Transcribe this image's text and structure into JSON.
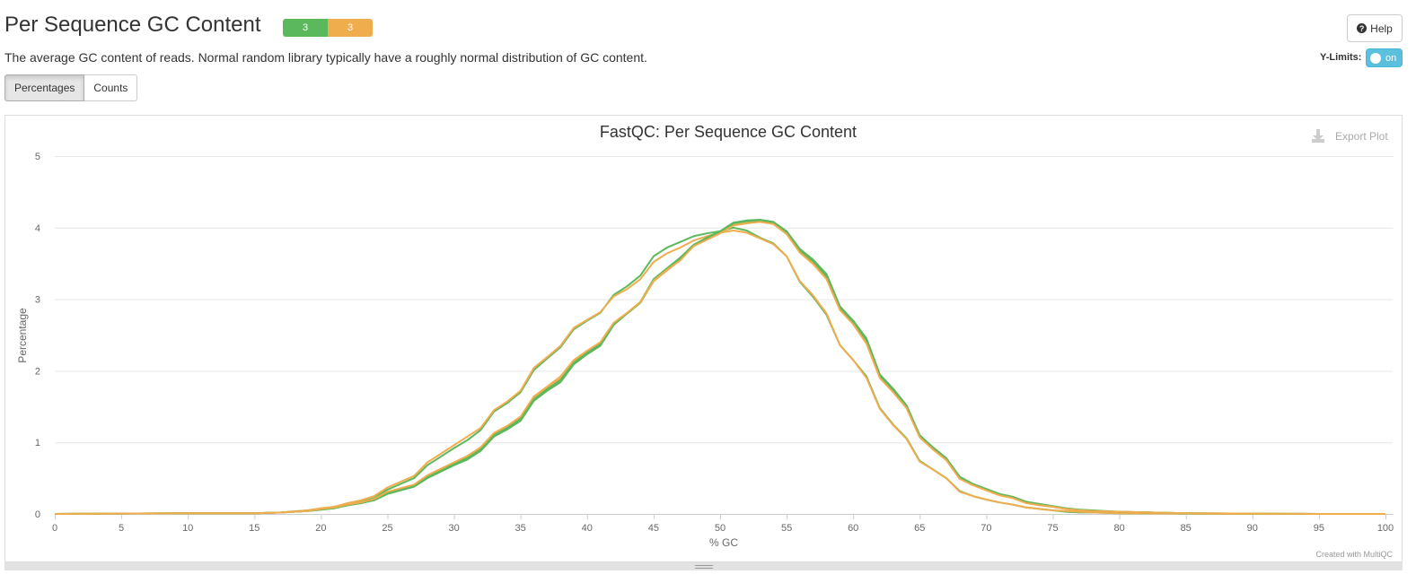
{
  "section": {
    "title": "Per Sequence GC Content",
    "description": "The average GC content of reads. Normal random library typically have a roughly normal distribution of GC content."
  },
  "status": [
    {
      "label": "3",
      "color": "#5cb85c"
    },
    {
      "label": "3",
      "color": "#f0ad4e"
    }
  ],
  "toolbar": {
    "help_label": "Help",
    "ylimits_label": "Y-Limits:",
    "ylimits_toggle": "on",
    "tabs": [
      "Percentages",
      "Counts"
    ],
    "active_tab": "Percentages"
  },
  "plot": {
    "export_label": "Export Plot",
    "credit": "Created with MultiQC"
  },
  "chart_data": {
    "type": "line",
    "title": "FastQC: Per Sequence GC Content",
    "xlabel": "% GC",
    "ylabel": "Percentage",
    "xlim": [
      0,
      100
    ],
    "ylim": [
      0,
      5
    ],
    "xticks": [
      0,
      5,
      10,
      15,
      20,
      25,
      30,
      35,
      40,
      45,
      50,
      55,
      60,
      65,
      70,
      75,
      80,
      85,
      90,
      95,
      100
    ],
    "yticks": [
      0,
      1,
      2,
      3,
      4,
      5
    ],
    "grid": true,
    "series": [
      {
        "color": "#5cb85c",
        "x": [
          0,
          10,
          15,
          17,
          19,
          20,
          21,
          22,
          23,
          24,
          25,
          26,
          27,
          28,
          29,
          30,
          31,
          32,
          33,
          34,
          35,
          36,
          37,
          38,
          39,
          40,
          41,
          42,
          43,
          44,
          45,
          46,
          47,
          48,
          49,
          50,
          51,
          52,
          53,
          54,
          55,
          56,
          57,
          58,
          59,
          60,
          61,
          62,
          63,
          64,
          65,
          66,
          67,
          68,
          69,
          70,
          71,
          72,
          73,
          74,
          75,
          76,
          77,
          78,
          80,
          85,
          90,
          95,
          100
        ],
        "y": [
          0,
          0.01,
          0.01,
          0.02,
          0.05,
          0.07,
          0.09,
          0.14,
          0.17,
          0.22,
          0.34,
          0.42,
          0.5,
          0.68,
          0.8,
          0.92,
          1.03,
          1.17,
          1.43,
          1.55,
          1.7,
          2.01,
          2.17,
          2.33,
          2.58,
          2.7,
          2.81,
          3.06,
          3.18,
          3.33,
          3.6,
          3.72,
          3.8,
          3.88,
          3.92,
          3.95,
          4.0,
          3.96,
          3.86,
          3.78,
          3.6,
          3.24,
          3.03,
          2.78,
          2.36,
          2.15,
          1.92,
          1.48,
          1.25,
          1.06,
          0.74,
          0.62,
          0.5,
          0.32,
          0.25,
          0.2,
          0.16,
          0.13,
          0.09,
          0.07,
          0.05,
          0.03,
          0.02,
          0.02,
          0.01,
          0.005,
          0,
          0,
          0
        ]
      },
      {
        "color": "#f0ad4e",
        "x": [
          0,
          10,
          15,
          17,
          19,
          20,
          21,
          22,
          23,
          24,
          25,
          26,
          27,
          28,
          29,
          30,
          31,
          32,
          33,
          34,
          35,
          36,
          37,
          38,
          39,
          40,
          41,
          42,
          43,
          44,
          45,
          46,
          47,
          48,
          49,
          50,
          51,
          52,
          53,
          54,
          55,
          56,
          57,
          58,
          59,
          60,
          61,
          62,
          63,
          64,
          65,
          66,
          67,
          68,
          69,
          70,
          71,
          72,
          73,
          74,
          75,
          76,
          77,
          78,
          80,
          85,
          90,
          95,
          100
        ],
        "y": [
          0,
          0.01,
          0.01,
          0.02,
          0.05,
          0.08,
          0.1,
          0.15,
          0.19,
          0.25,
          0.37,
          0.45,
          0.53,
          0.72,
          0.84,
          0.96,
          1.08,
          1.2,
          1.45,
          1.57,
          1.72,
          2.04,
          2.19,
          2.35,
          2.6,
          2.71,
          2.82,
          3.04,
          3.14,
          3.28,
          3.52,
          3.64,
          3.72,
          3.82,
          3.88,
          3.93,
          3.96,
          3.93,
          3.85,
          3.77,
          3.6,
          3.25,
          3.05,
          2.8,
          2.36,
          2.15,
          1.9,
          1.47,
          1.24,
          1.05,
          0.73,
          0.62,
          0.5,
          0.31,
          0.25,
          0.2,
          0.16,
          0.13,
          0.09,
          0.07,
          0.05,
          0.04,
          0.03,
          0.02,
          0.01,
          0.005,
          0,
          0,
          0
        ]
      },
      {
        "color": "#5cb85c",
        "x": [
          0,
          10,
          15,
          17,
          19,
          20,
          21,
          22,
          23,
          24,
          25,
          26,
          27,
          28,
          29,
          30,
          31,
          32,
          33,
          34,
          35,
          36,
          37,
          38,
          39,
          40,
          41,
          42,
          43,
          44,
          45,
          46,
          47,
          48,
          49,
          50,
          51,
          52,
          53,
          54,
          55,
          56,
          57,
          58,
          59,
          60,
          61,
          62,
          63,
          64,
          65,
          66,
          67,
          68,
          69,
          70,
          71,
          72,
          73,
          74,
          75,
          76,
          77,
          78,
          80,
          85,
          90,
          95,
          100
        ],
        "y": [
          0,
          0.01,
          0.01,
          0.02,
          0.04,
          0.06,
          0.08,
          0.12,
          0.15,
          0.19,
          0.28,
          0.33,
          0.38,
          0.5,
          0.59,
          0.68,
          0.76,
          0.88,
          1.08,
          1.18,
          1.3,
          1.58,
          1.72,
          1.84,
          2.09,
          2.23,
          2.35,
          2.64,
          2.8,
          2.96,
          3.28,
          3.43,
          3.58,
          3.76,
          3.86,
          3.95,
          4.07,
          4.1,
          4.11,
          4.08,
          3.95,
          3.7,
          3.55,
          3.35,
          2.9,
          2.7,
          2.45,
          1.95,
          1.75,
          1.52,
          1.1,
          0.93,
          0.78,
          0.52,
          0.42,
          0.35,
          0.28,
          0.24,
          0.17,
          0.14,
          0.11,
          0.08,
          0.06,
          0.05,
          0.03,
          0.01,
          0.005,
          0,
          0
        ]
      },
      {
        "color": "#f0ad4e",
        "x": [
          0,
          10,
          15,
          17,
          19,
          20,
          21,
          22,
          23,
          24,
          25,
          26,
          27,
          28,
          29,
          30,
          31,
          32,
          33,
          34,
          35,
          36,
          37,
          38,
          39,
          40,
          41,
          42,
          43,
          44,
          45,
          46,
          47,
          48,
          49,
          50,
          51,
          52,
          53,
          54,
          55,
          56,
          57,
          58,
          59,
          60,
          61,
          62,
          63,
          64,
          65,
          66,
          67,
          68,
          69,
          70,
          71,
          72,
          73,
          74,
          75,
          76,
          77,
          78,
          80,
          85,
          90,
          95,
          100
        ],
        "y": [
          0,
          0.01,
          0.01,
          0.02,
          0.04,
          0.06,
          0.08,
          0.13,
          0.16,
          0.2,
          0.3,
          0.35,
          0.4,
          0.53,
          0.62,
          0.71,
          0.8,
          0.92,
          1.12,
          1.22,
          1.35,
          1.62,
          1.76,
          1.9,
          2.13,
          2.26,
          2.38,
          2.66,
          2.8,
          2.95,
          3.25,
          3.4,
          3.55,
          3.74,
          3.84,
          3.93,
          4.04,
          4.07,
          4.09,
          4.06,
          3.92,
          3.66,
          3.5,
          3.3,
          2.86,
          2.66,
          2.4,
          1.92,
          1.72,
          1.5,
          1.08,
          0.91,
          0.76,
          0.5,
          0.41,
          0.34,
          0.27,
          0.23,
          0.16,
          0.13,
          0.1,
          0.07,
          0.05,
          0.04,
          0.03,
          0.01,
          0.005,
          0,
          0
        ]
      },
      {
        "color": "#5cb85c",
        "x": [
          0,
          10,
          15,
          17,
          19,
          20,
          21,
          22,
          23,
          24,
          25,
          26,
          27,
          28,
          29,
          30,
          31,
          32,
          33,
          34,
          35,
          36,
          37,
          38,
          39,
          40,
          41,
          42,
          43,
          44,
          45,
          46,
          47,
          48,
          49,
          50,
          51,
          52,
          53,
          54,
          55,
          56,
          57,
          58,
          59,
          60,
          61,
          62,
          63,
          64,
          65,
          66,
          67,
          68,
          69,
          70,
          71,
          72,
          73,
          74,
          75,
          76,
          77,
          78,
          80,
          85,
          90,
          95,
          100
        ],
        "y": [
          0,
          0.01,
          0.01,
          0.02,
          0.04,
          0.06,
          0.08,
          0.12,
          0.15,
          0.2,
          0.29,
          0.34,
          0.39,
          0.52,
          0.6,
          0.7,
          0.78,
          0.9,
          1.1,
          1.2,
          1.33,
          1.6,
          1.74,
          1.87,
          2.11,
          2.25,
          2.37,
          2.65,
          2.8,
          2.95,
          3.27,
          3.42,
          3.56,
          3.75,
          3.85,
          3.94,
          4.06,
          4.09,
          4.1,
          4.07,
          3.94,
          3.68,
          3.53,
          3.32,
          2.88,
          2.68,
          2.43,
          1.93,
          1.73,
          1.51,
          1.09,
          0.92,
          0.77,
          0.51,
          0.41,
          0.34,
          0.27,
          0.23,
          0.16,
          0.13,
          0.1,
          0.07,
          0.05,
          0.04,
          0.03,
          0.01,
          0.005,
          0,
          0
        ]
      },
      {
        "color": "#f0ad4e",
        "x": [
          0,
          10,
          15,
          17,
          19,
          20,
          21,
          22,
          23,
          24,
          25,
          26,
          27,
          28,
          29,
          30,
          31,
          32,
          33,
          34,
          35,
          36,
          37,
          38,
          39,
          40,
          41,
          42,
          43,
          44,
          45,
          46,
          47,
          48,
          49,
          50,
          51,
          52,
          53,
          54,
          55,
          56,
          57,
          58,
          59,
          60,
          61,
          62,
          63,
          64,
          65,
          66,
          67,
          68,
          69,
          70,
          71,
          72,
          73,
          74,
          75,
          76,
          77,
          78,
          80,
          85,
          90,
          95,
          100
        ],
        "y": [
          0,
          0.01,
          0.01,
          0.02,
          0.04,
          0.07,
          0.09,
          0.13,
          0.16,
          0.21,
          0.31,
          0.36,
          0.41,
          0.54,
          0.63,
          0.72,
          0.81,
          0.93,
          1.13,
          1.23,
          1.36,
          1.64,
          1.78,
          1.92,
          2.15,
          2.28,
          2.4,
          2.67,
          2.81,
          2.96,
          3.26,
          3.41,
          3.54,
          3.74,
          3.83,
          3.92,
          4.03,
          4.06,
          4.08,
          4.05,
          3.91,
          3.65,
          3.49,
          3.28,
          2.85,
          2.65,
          2.38,
          1.9,
          1.7,
          1.48,
          1.07,
          0.9,
          0.75,
          0.49,
          0.4,
          0.33,
          0.26,
          0.22,
          0.15,
          0.12,
          0.1,
          0.07,
          0.05,
          0.04,
          0.03,
          0.01,
          0.005,
          0,
          0
        ]
      }
    ]
  }
}
